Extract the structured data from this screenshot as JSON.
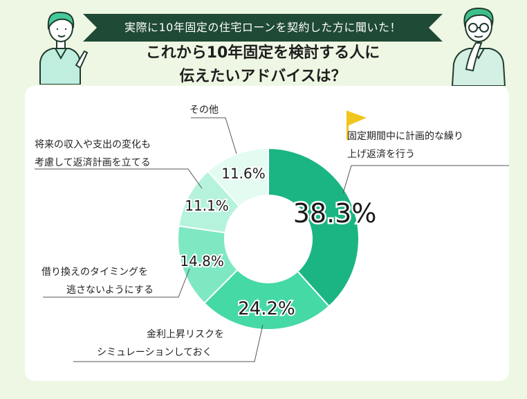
{
  "header": {
    "banner": "実際に10年固定の住宅ローンを契約した方に聞いた！",
    "title_line1": "これから10年固定を検討する人に",
    "title_line2": "伝えたいアドバイスは？"
  },
  "colors": {
    "banner": "#1f4a35",
    "slice_0": "#1bb584",
    "slice_1": "#45d9a6",
    "slice_2": "#7ee8c3",
    "slice_3": "#b5f3dc",
    "slice_4": "#e3fbf0"
  },
  "chart_data": {
    "type": "pie",
    "donut": true,
    "categories": [
      "固定期間中に計画的な繰り上げ返済を行う",
      "金利上昇リスクをシミュレーションしておく",
      "借り換えのタイミングを逃さないようにする",
      "将来の収入や支出の変化も考慮して返済計画を立てる",
      "その他"
    ],
    "values": [
      38.3,
      24.2,
      14.8,
      11.1,
      11.6
    ],
    "value_labels": [
      "38.3%",
      "24.2%",
      "14.8%",
      "11.1%",
      "11.6%"
    ],
    "labels_display": [
      [
        "固定期間中に計画的な繰り",
        "上げ返済を行う"
      ],
      [
        "金利上昇リスクを",
        "シミュレーションしておく"
      ],
      [
        "借り換えのタイミングを",
        "逃さないようにする"
      ],
      [
        "将来の収入や支出の変化も",
        "考慮して返済計画を立てる"
      ],
      [
        "その他"
      ]
    ],
    "highlight_icon": "flag-icon"
  }
}
